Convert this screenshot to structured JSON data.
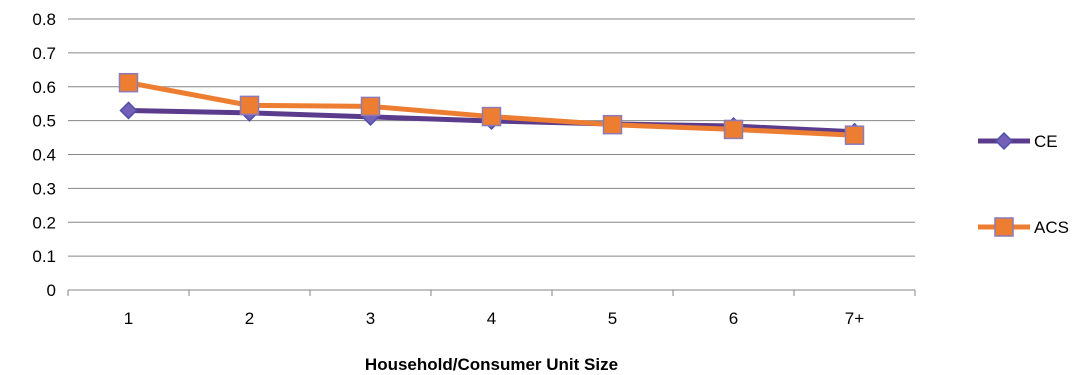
{
  "chart_data": {
    "type": "line",
    "title": "",
    "xlabel": "Household/Consumer Unit Size",
    "ylabel": "",
    "categories": [
      "1",
      "2",
      "3",
      "4",
      "5",
      "6",
      "7+"
    ],
    "ylim": [
      0,
      0.8
    ],
    "yticks": [
      "0",
      "0.1",
      "0.2",
      "0.3",
      "0.4",
      "0.5",
      "0.6",
      "0.7",
      "0.8"
    ],
    "grid": "horizontal",
    "legend_position": "right",
    "series": [
      {
        "name": "CE",
        "values": [
          0.53,
          0.523,
          0.511,
          0.499,
          0.49,
          0.484,
          0.467
        ],
        "line_color": "#5B3C8C",
        "marker": "diamond",
        "marker_color": "#7560B8"
      },
      {
        "name": "ACS",
        "values": [
          0.612,
          0.545,
          0.542,
          0.512,
          0.488,
          0.474,
          0.457
        ],
        "line_color": "#ED7D31",
        "marker": "square",
        "marker_color": "#ED7D31"
      }
    ]
  }
}
